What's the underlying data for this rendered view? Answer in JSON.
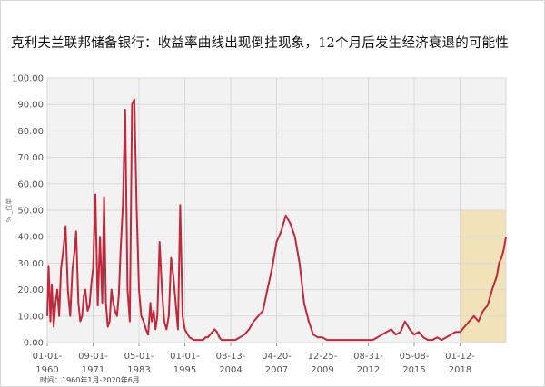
{
  "title": "克利夫兰联邦储备银行：收益率曲线出现倒挂现象，12个月后发生经济衰退的可能性",
  "footnote": "时间：1960年1月-2020年6月",
  "chart_data": {
    "type": "line",
    "ylabel": "%  _位单",
    "ylim": [
      0,
      100
    ],
    "yticks": [
      "0.00",
      "10.00",
      "20.00",
      "30.00",
      "40.00",
      "50.00",
      "60.00",
      "70.00",
      "80.00",
      "90.00",
      "100.00"
    ],
    "xticks": [
      {
        "date": "1960-01-01",
        "line1": "01-01-",
        "line2": "1960"
      },
      {
        "date": "1971-09-01",
        "line1": "09-01-",
        "line2": "1971"
      },
      {
        "date": "1983-05-01",
        "line1": "05-01-",
        "line2": "1983"
      },
      {
        "date": "1995-01-01",
        "line1": "01-01-",
        "line2": "1995"
      },
      {
        "date": "2004-08-13",
        "line1": "08-13-",
        "line2": "2004"
      },
      {
        "date": "2007-04-20",
        "line1": "04-20-",
        "line2": "2007"
      },
      {
        "date": "2009-12-25",
        "line1": "12-25-",
        "line2": "2009"
      },
      {
        "date": "2012-08-31",
        "line1": "08-31-",
        "line2": "2012"
      },
      {
        "date": "2015-05-08",
        "line1": "05-08-",
        "line2": "2015"
      },
      {
        "date": "2018-01-12",
        "line1": "01-12-",
        "line2": "2018"
      }
    ],
    "highlight": {
      "from_index": 9.0,
      "to_index": 10.0,
      "ymax": 50,
      "color": "#f3d58a"
    },
    "series_color": "#c0293b",
    "series": [
      {
        "x_index": [
          0.0,
          0.03,
          0.07,
          0.1,
          0.14,
          0.18,
          0.22,
          0.26,
          0.3,
          0.35,
          0.4,
          0.45,
          0.5,
          0.55,
          0.6,
          0.63,
          0.68,
          0.72,
          0.76,
          0.8,
          0.83,
          0.88,
          0.92,
          0.96,
          1.0,
          1.05,
          1.1,
          1.15,
          1.2,
          1.24,
          1.28,
          1.32,
          1.36,
          1.4,
          1.44,
          1.48,
          1.52,
          1.56,
          1.6,
          1.65,
          1.7,
          1.75,
          1.8,
          1.85,
          1.9,
          1.95,
          2.0,
          2.05,
          2.1,
          2.15,
          2.2,
          2.25,
          2.28,
          2.32,
          2.36,
          2.4,
          2.45,
          2.5,
          2.55,
          2.6,
          2.65,
          2.7,
          2.75,
          2.8,
          2.85,
          2.9,
          2.95,
          3.0,
          3.1,
          3.2,
          3.3,
          3.4,
          3.45,
          3.5,
          3.55,
          3.6,
          3.65,
          3.7,
          3.75,
          3.8,
          3.85,
          3.9,
          3.95,
          4.0,
          4.1,
          4.2,
          4.3,
          4.4,
          4.5,
          4.6,
          4.7,
          4.8,
          4.9,
          5.0,
          5.1,
          5.2,
          5.3,
          5.4,
          5.5,
          5.6,
          5.7,
          5.8,
          5.9,
          6.0,
          6.1,
          6.2,
          6.3,
          6.4,
          6.5,
          6.6,
          6.7,
          6.8,
          6.9,
          7.0,
          7.1,
          7.2,
          7.3,
          7.4,
          7.5,
          7.6,
          7.7,
          7.8,
          7.9,
          8.0,
          8.1,
          8.2,
          8.3,
          8.4,
          8.5,
          8.6,
          8.7,
          8.8,
          8.9,
          9.0,
          9.1,
          9.2,
          9.3,
          9.4,
          9.5,
          9.6,
          9.7,
          9.8,
          9.85,
          9.9,
          9.95,
          10.0
        ],
        "values": [
          10,
          29,
          8,
          22,
          6,
          15,
          20,
          10,
          28,
          35,
          44,
          20,
          10,
          28,
          35,
          42,
          15,
          8,
          10,
          18,
          20,
          12,
          14,
          22,
          28,
          56,
          14,
          40,
          15,
          55,
          15,
          6,
          8,
          20,
          15,
          12,
          10,
          18,
          35,
          52,
          88,
          20,
          8,
          90,
          92,
          50,
          20,
          10,
          8,
          5,
          3,
          15,
          8,
          12,
          5,
          10,
          38,
          20,
          8,
          5,
          10,
          32,
          25,
          15,
          5,
          52,
          10,
          5,
          2,
          1,
          1,
          1,
          2,
          2,
          3,
          4,
          5,
          4,
          2,
          1,
          1,
          1,
          1,
          1,
          1,
          2,
          3,
          5,
          8,
          10,
          12,
          20,
          28,
          38,
          42,
          48,
          45,
          40,
          30,
          15,
          8,
          3,
          2,
          2,
          1,
          1,
          1,
          1,
          1,
          1,
          1,
          1,
          1,
          1,
          1,
          2,
          3,
          4,
          5,
          3,
          4,
          8,
          5,
          3,
          4,
          2,
          1,
          1,
          2,
          1,
          2,
          3,
          4,
          4,
          6,
          8,
          10,
          8,
          12,
          14,
          20,
          25,
          30,
          32,
          35,
          40
        ]
      }
    ]
  }
}
